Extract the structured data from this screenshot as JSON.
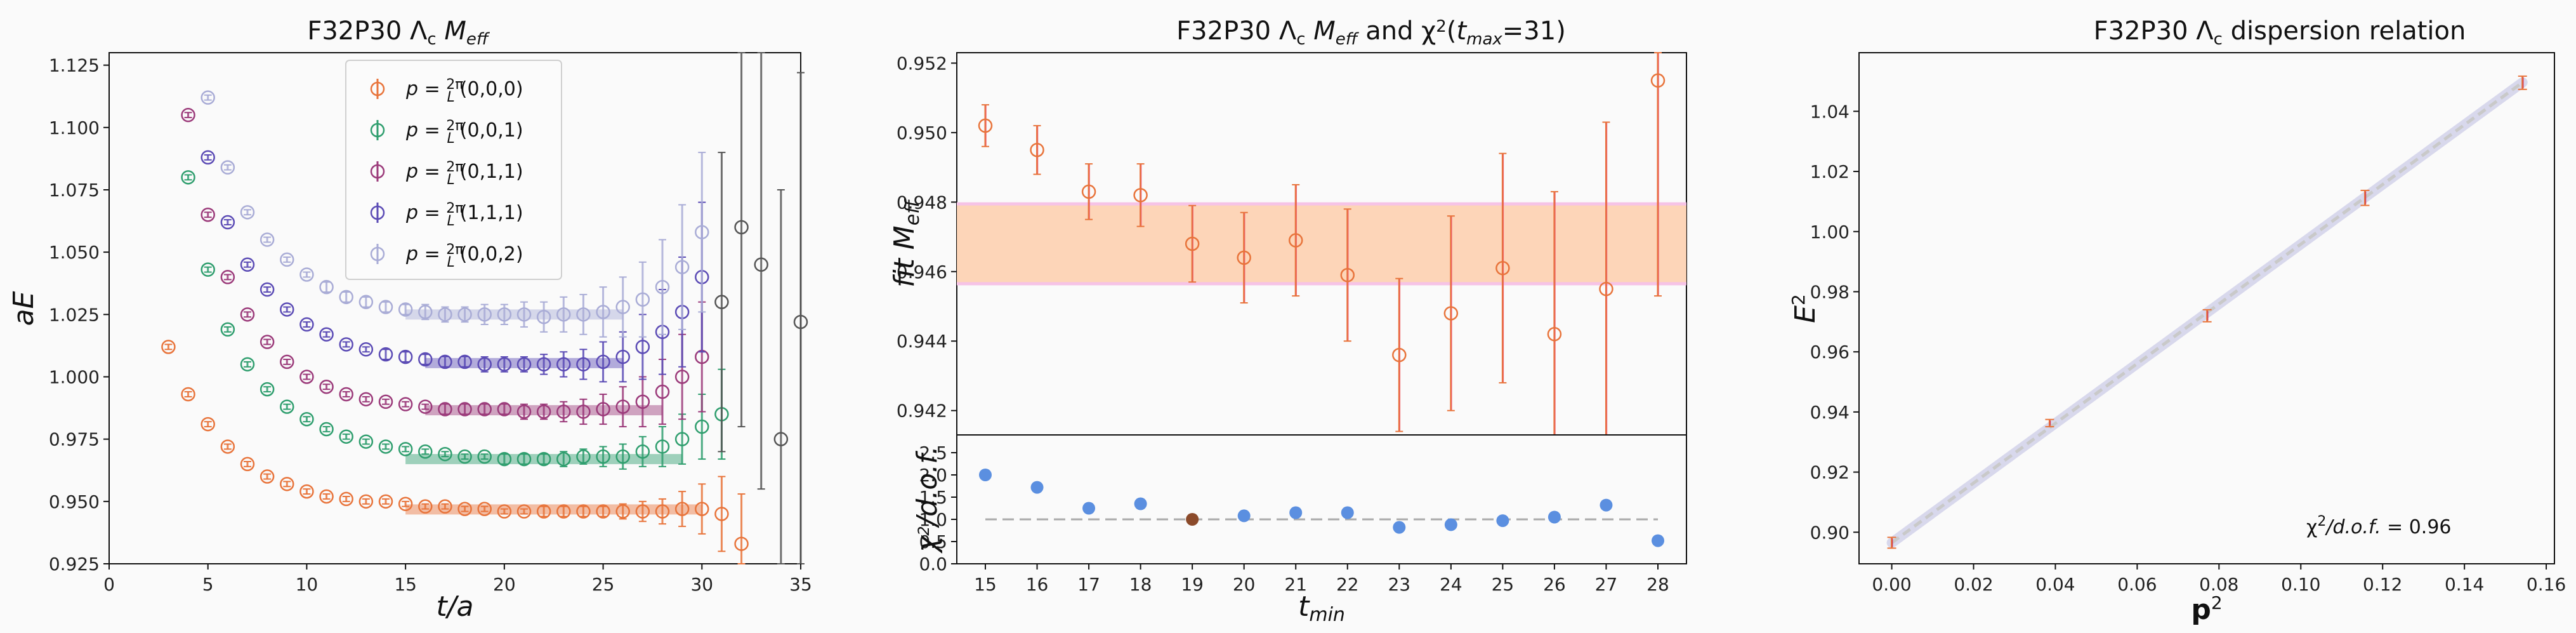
{
  "chart_data": [
    {
      "type": "scatter",
      "title": "F32P30 Λc Meff",
      "xlabel": "t/a",
      "ylabel": "aE",
      "xlim": [
        0,
        35
      ],
      "ylim": [
        0.925,
        1.13
      ],
      "xticks": [
        "0",
        "5",
        "10",
        "15",
        "20",
        "25",
        "30",
        "35"
      ],
      "yticks": [
        "0.925",
        "0.950",
        "0.975",
        "1.000",
        "1.025",
        "1.050",
        "1.075",
        "1.100",
        "1.125"
      ],
      "legend_position": "top-right",
      "series": [
        {
          "name": "p=2π/L(0,0,0)",
          "color": "#e8743b",
          "x": [
            3,
            4,
            5,
            6,
            7,
            8,
            9,
            10,
            11,
            12,
            13,
            14,
            15,
            16,
            17,
            18,
            19,
            20,
            21,
            22,
            23,
            24,
            25,
            26,
            27,
            28,
            29,
            30,
            31,
            32
          ],
          "y": [
            1.012,
            0.993,
            0.981,
            0.972,
            0.965,
            0.96,
            0.957,
            0.954,
            0.952,
            0.951,
            0.95,
            0.95,
            0.949,
            0.948,
            0.948,
            0.947,
            0.947,
            0.946,
            0.946,
            0.946,
            0.946,
            0.946,
            0.946,
            0.946,
            0.946,
            0.946,
            0.947,
            0.947,
            0.945,
            0.933
          ],
          "err": [
            0.001,
            0.001,
            0.001,
            0.001,
            0.001,
            0.001,
            0.001,
            0.001,
            0.001,
            0.001,
            0.001,
            0.001,
            0.001,
            0.001,
            0.001,
            0.001,
            0.001,
            0.001,
            0.001,
            0.002,
            0.002,
            0.002,
            0.002,
            0.003,
            0.004,
            0.005,
            0.007,
            0.01,
            0.015,
            0.02
          ],
          "fit": {
            "y": 0.9468,
            "x": [
              15,
              30
            ]
          }
        },
        {
          "name": "p=2π/L(0,0,1)",
          "color": "#2f9e6e",
          "x": [
            4,
            5,
            6,
            7,
            8,
            9,
            10,
            11,
            12,
            13,
            14,
            15,
            16,
            17,
            18,
            19,
            20,
            21,
            22,
            23,
            24,
            25,
            26,
            27,
            28,
            29,
            30,
            31
          ],
          "y": [
            1.08,
            1.043,
            1.019,
            1.005,
            0.995,
            0.988,
            0.983,
            0.979,
            0.976,
            0.974,
            0.972,
            0.971,
            0.97,
            0.969,
            0.968,
            0.968,
            0.967,
            0.967,
            0.967,
            0.967,
            0.968,
            0.968,
            0.968,
            0.97,
            0.972,
            0.975,
            0.98,
            0.985
          ],
          "err": [
            0.001,
            0.001,
            0.001,
            0.001,
            0.001,
            0.001,
            0.001,
            0.001,
            0.001,
            0.001,
            0.001,
            0.001,
            0.001,
            0.001,
            0.001,
            0.001,
            0.002,
            0.002,
            0.002,
            0.003,
            0.003,
            0.004,
            0.005,
            0.006,
            0.008,
            0.01,
            0.013,
            0.018
          ],
          "fit": {
            "y": 0.967,
            "x": [
              15,
              29
            ]
          }
        },
        {
          "name": "p=2π/L(0,1,1)",
          "color": "#9b3a7a",
          "x": [
            4,
            5,
            6,
            7,
            8,
            9,
            10,
            11,
            12,
            13,
            14,
            15,
            16,
            17,
            18,
            19,
            20,
            21,
            22,
            23,
            24,
            25,
            26,
            27,
            28,
            29,
            30
          ],
          "y": [
            1.105,
            1.065,
            1.04,
            1.025,
            1.014,
            1.006,
            1.0,
            0.996,
            0.993,
            0.991,
            0.99,
            0.989,
            0.988,
            0.987,
            0.987,
            0.987,
            0.987,
            0.986,
            0.986,
            0.986,
            0.986,
            0.987,
            0.988,
            0.99,
            0.994,
            1.0,
            1.008
          ],
          "err": [
            0.001,
            0.001,
            0.001,
            0.001,
            0.001,
            0.001,
            0.001,
            0.001,
            0.001,
            0.001,
            0.001,
            0.001,
            0.001,
            0.002,
            0.002,
            0.002,
            0.002,
            0.003,
            0.003,
            0.004,
            0.005,
            0.006,
            0.008,
            0.01,
            0.013,
            0.017,
            0.022
          ],
          "fit": {
            "y": 0.9866,
            "x": [
              16,
              28
            ]
          }
        },
        {
          "name": "p=2π/L(1,1,1)",
          "color": "#5b4bb5",
          "x": [
            5,
            6,
            7,
            8,
            9,
            10,
            11,
            12,
            13,
            14,
            15,
            16,
            17,
            18,
            19,
            20,
            21,
            22,
            23,
            24,
            25,
            26,
            27,
            28,
            29,
            30
          ],
          "y": [
            1.088,
            1.062,
            1.045,
            1.035,
            1.027,
            1.021,
            1.017,
            1.013,
            1.011,
            1.009,
            1.008,
            1.007,
            1.006,
            1.006,
            1.005,
            1.005,
            1.005,
            1.005,
            1.005,
            1.005,
            1.006,
            1.008,
            1.012,
            1.018,
            1.026,
            1.04
          ],
          "err": [
            0.001,
            0.001,
            0.001,
            0.001,
            0.001,
            0.001,
            0.001,
            0.001,
            0.001,
            0.002,
            0.002,
            0.002,
            0.002,
            0.002,
            0.003,
            0.003,
            0.003,
            0.004,
            0.005,
            0.006,
            0.008,
            0.01,
            0.013,
            0.017,
            0.022,
            0.03
          ],
          "fit": {
            "y": 1.0055,
            "x": [
              16,
              26
            ]
          }
        },
        {
          "name": "p=2π/L(0,0,2)",
          "color": "#a9acd6",
          "x": [
            5,
            6,
            7,
            8,
            9,
            10,
            11,
            12,
            13,
            14,
            15,
            16,
            17,
            18,
            19,
            20,
            21,
            22,
            23,
            24,
            25,
            26,
            27,
            28,
            29,
            30
          ],
          "y": [
            1.112,
            1.084,
            1.066,
            1.055,
            1.047,
            1.041,
            1.036,
            1.032,
            1.03,
            1.028,
            1.027,
            1.026,
            1.025,
            1.025,
            1.025,
            1.025,
            1.025,
            1.024,
            1.025,
            1.025,
            1.026,
            1.028,
            1.031,
            1.036,
            1.044,
            1.058
          ],
          "err": [
            0.001,
            0.001,
            0.001,
            0.001,
            0.001,
            0.001,
            0.002,
            0.002,
            0.002,
            0.002,
            0.002,
            0.003,
            0.003,
            0.003,
            0.004,
            0.004,
            0.005,
            0.006,
            0.007,
            0.008,
            0.01,
            0.012,
            0.015,
            0.019,
            0.025,
            0.032
          ],
          "fit": {
            "y": 1.025,
            "x": [
              15,
              26
            ]
          }
        },
        {
          "name": "",
          "color": "#555555",
          "x": [
            31,
            32,
            33,
            34,
            35
          ],
          "y": [
            1.03,
            1.06,
            1.045,
            0.975,
            1.022
          ],
          "err": [
            0.06,
            0.08,
            0.09,
            0.1,
            0.1
          ]
        }
      ]
    },
    {
      "type": "scatter",
      "title": "F32P30 Λc  Meff and χ2(tmax=31)",
      "xlabel": "tmin",
      "ylabel": "fit Meff",
      "ylim": [
        0.9413,
        0.9523
      ],
      "yticks": [
        "0.942",
        "0.944",
        "0.946",
        "0.948",
        "0.950",
        "0.952"
      ],
      "xticks": [
        "15",
        "16",
        "17",
        "18",
        "19",
        "20",
        "21",
        "22",
        "23",
        "24",
        "25",
        "26",
        "27",
        "28"
      ],
      "band": [
        0.94565,
        0.94795
      ],
      "x": [
        15,
        16,
        17,
        18,
        19,
        20,
        21,
        22,
        23,
        24,
        25,
        26,
        27,
        28
      ],
      "y": [
        0.9502,
        0.9495,
        0.9483,
        0.9482,
        0.9468,
        0.9464,
        0.9469,
        0.9459,
        0.9436,
        0.9448,
        0.9461,
        0.9442,
        0.9455,
        0.9515
      ],
      "err": [
        0.0006,
        0.0007,
        0.0008,
        0.0009,
        0.0011,
        0.0013,
        0.0016,
        0.0019,
        0.0022,
        0.0028,
        0.0033,
        0.0041,
        0.0048,
        0.0062
      ],
      "chi2": {
        "ylabel": "χ2/d.o.f.",
        "ylim": [
          0.0,
          2.9
        ],
        "yticks": [
          "0.0",
          "0.5",
          "1.0",
          "1.5",
          "2.0",
          "2.5"
        ],
        "values": [
          2.0,
          1.72,
          1.25,
          1.35,
          1.0,
          1.08,
          1.15,
          1.15,
          0.82,
          0.88,
          0.97,
          1.05,
          1.32,
          0.52
        ],
        "reference": 1.0,
        "highlight_tmin": 19
      }
    },
    {
      "type": "line",
      "title": "F32P30 Λc dispersion relation",
      "xlabel": "p2",
      "ylabel": "E2",
      "xlim": [
        -0.008,
        0.162
      ],
      "ylim": [
        0.8895,
        1.0595
      ],
      "xticks": [
        "0.00",
        "0.02",
        "0.04",
        "0.06",
        "0.08",
        "0.10",
        "0.12",
        "0.14",
        "0.16"
      ],
      "yticks": [
        "0.90",
        "0.92",
        "0.94",
        "0.96",
        "0.98",
        "1.00",
        "1.02",
        "1.04"
      ],
      "x": [
        0.0,
        0.0386,
        0.0771,
        0.1157,
        0.1542
      ],
      "y": [
        0.8965,
        0.9363,
        0.972,
        1.0112,
        1.0495
      ],
      "err": [
        0.0018,
        0.0012,
        0.002,
        0.0025,
        0.0022
      ],
      "fit": {
        "intercept": 0.8965,
        "slope": 0.993
      },
      "annotation": "χ2/d.o.f. = 0.96"
    }
  ]
}
